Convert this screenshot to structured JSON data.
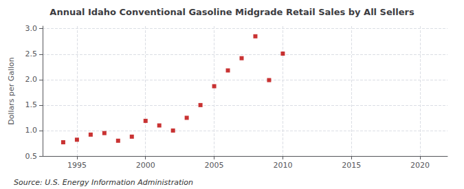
{
  "chart_data": {
    "type": "scatter",
    "title": "Annual Idaho Conventional Gasoline Midgrade Retail Sales by All Sellers",
    "ylabel": "Dollars per Gallon",
    "annotations": [
      "Source: U.S. Energy Information Administration"
    ],
    "x": [
      1994,
      1995,
      1996,
      1997,
      1998,
      1999,
      2000,
      2001,
      2002,
      2003,
      2004,
      2005,
      2006,
      2007,
      2008,
      2009,
      2010
    ],
    "values": [
      0.77,
      0.82,
      0.92,
      0.95,
      0.8,
      0.88,
      1.19,
      1.1,
      1.0,
      1.25,
      1.5,
      1.87,
      2.18,
      2.42,
      2.85,
      1.99,
      2.51
    ],
    "color": "#bb0000",
    "marker": "square",
    "xlim": [
      1992.5,
      2022
    ],
    "ylim": [
      0.5,
      3.05
    ],
    "xticks": [
      1995,
      2000,
      2005,
      2010,
      2015,
      2020
    ],
    "yticks": [
      0.5,
      {
        "value": 1,
        "label": "1.0"
      },
      1.5,
      {
        "value": 2,
        "label": "2.0"
      },
      2.5,
      {
        "value": 3,
        "label": "3.0"
      }
    ],
    "grid": true
  }
}
